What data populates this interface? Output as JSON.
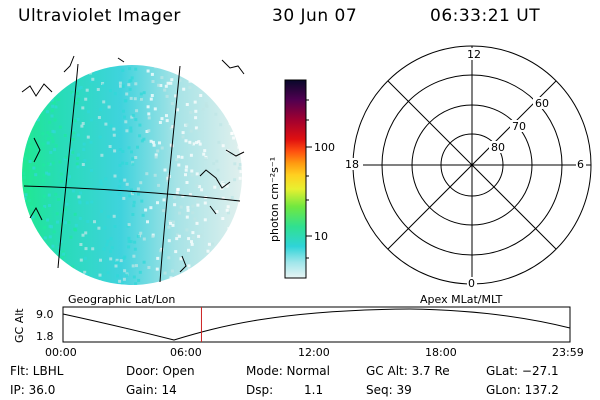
{
  "header": {
    "title": "Ultraviolet Imager",
    "date": "30 Jun 07",
    "time": "06:33:21 UT"
  },
  "colorbar": {
    "label": "photon cm⁻²s⁻¹",
    "ticks": [
      "100",
      "10"
    ]
  },
  "polar_plot": {
    "mlt_labels": [
      "12",
      "18",
      "6",
      "0"
    ],
    "mlat_labels": [
      "60",
      "70",
      "80"
    ]
  },
  "orbit_panel": {
    "left_title": "Geographic Lat/Lon",
    "right_title": "Apex MLat/MLT",
    "y_axis_label": "GC Alt",
    "y_ticks": [
      "9.0",
      "1.8"
    ],
    "x_ticks": [
      "00:00",
      "06:00",
      "12:00",
      "18:00",
      "23:59"
    ],
    "current_marker_fraction": 0.2731
  },
  "status": {
    "filter": "Flt: LBHL",
    "ip": "IP: 36.0",
    "door": "Door: Open",
    "gain": "Gain: 14",
    "mode": "Mode: Normal",
    "dsp_label": "Dsp:",
    "dsp_value": "1.1",
    "gc_alt": "GC Alt: 3.7 Re",
    "seq": "Seq: 39",
    "glat": "GLat: −27.1",
    "glon": "GLon: 137.2"
  },
  "colors": {
    "marker": "#cc2222",
    "auroral_high": "#20e8a0",
    "auroral_mid": "#30d8d8",
    "auroral_low": "#bfe6e6"
  }
}
